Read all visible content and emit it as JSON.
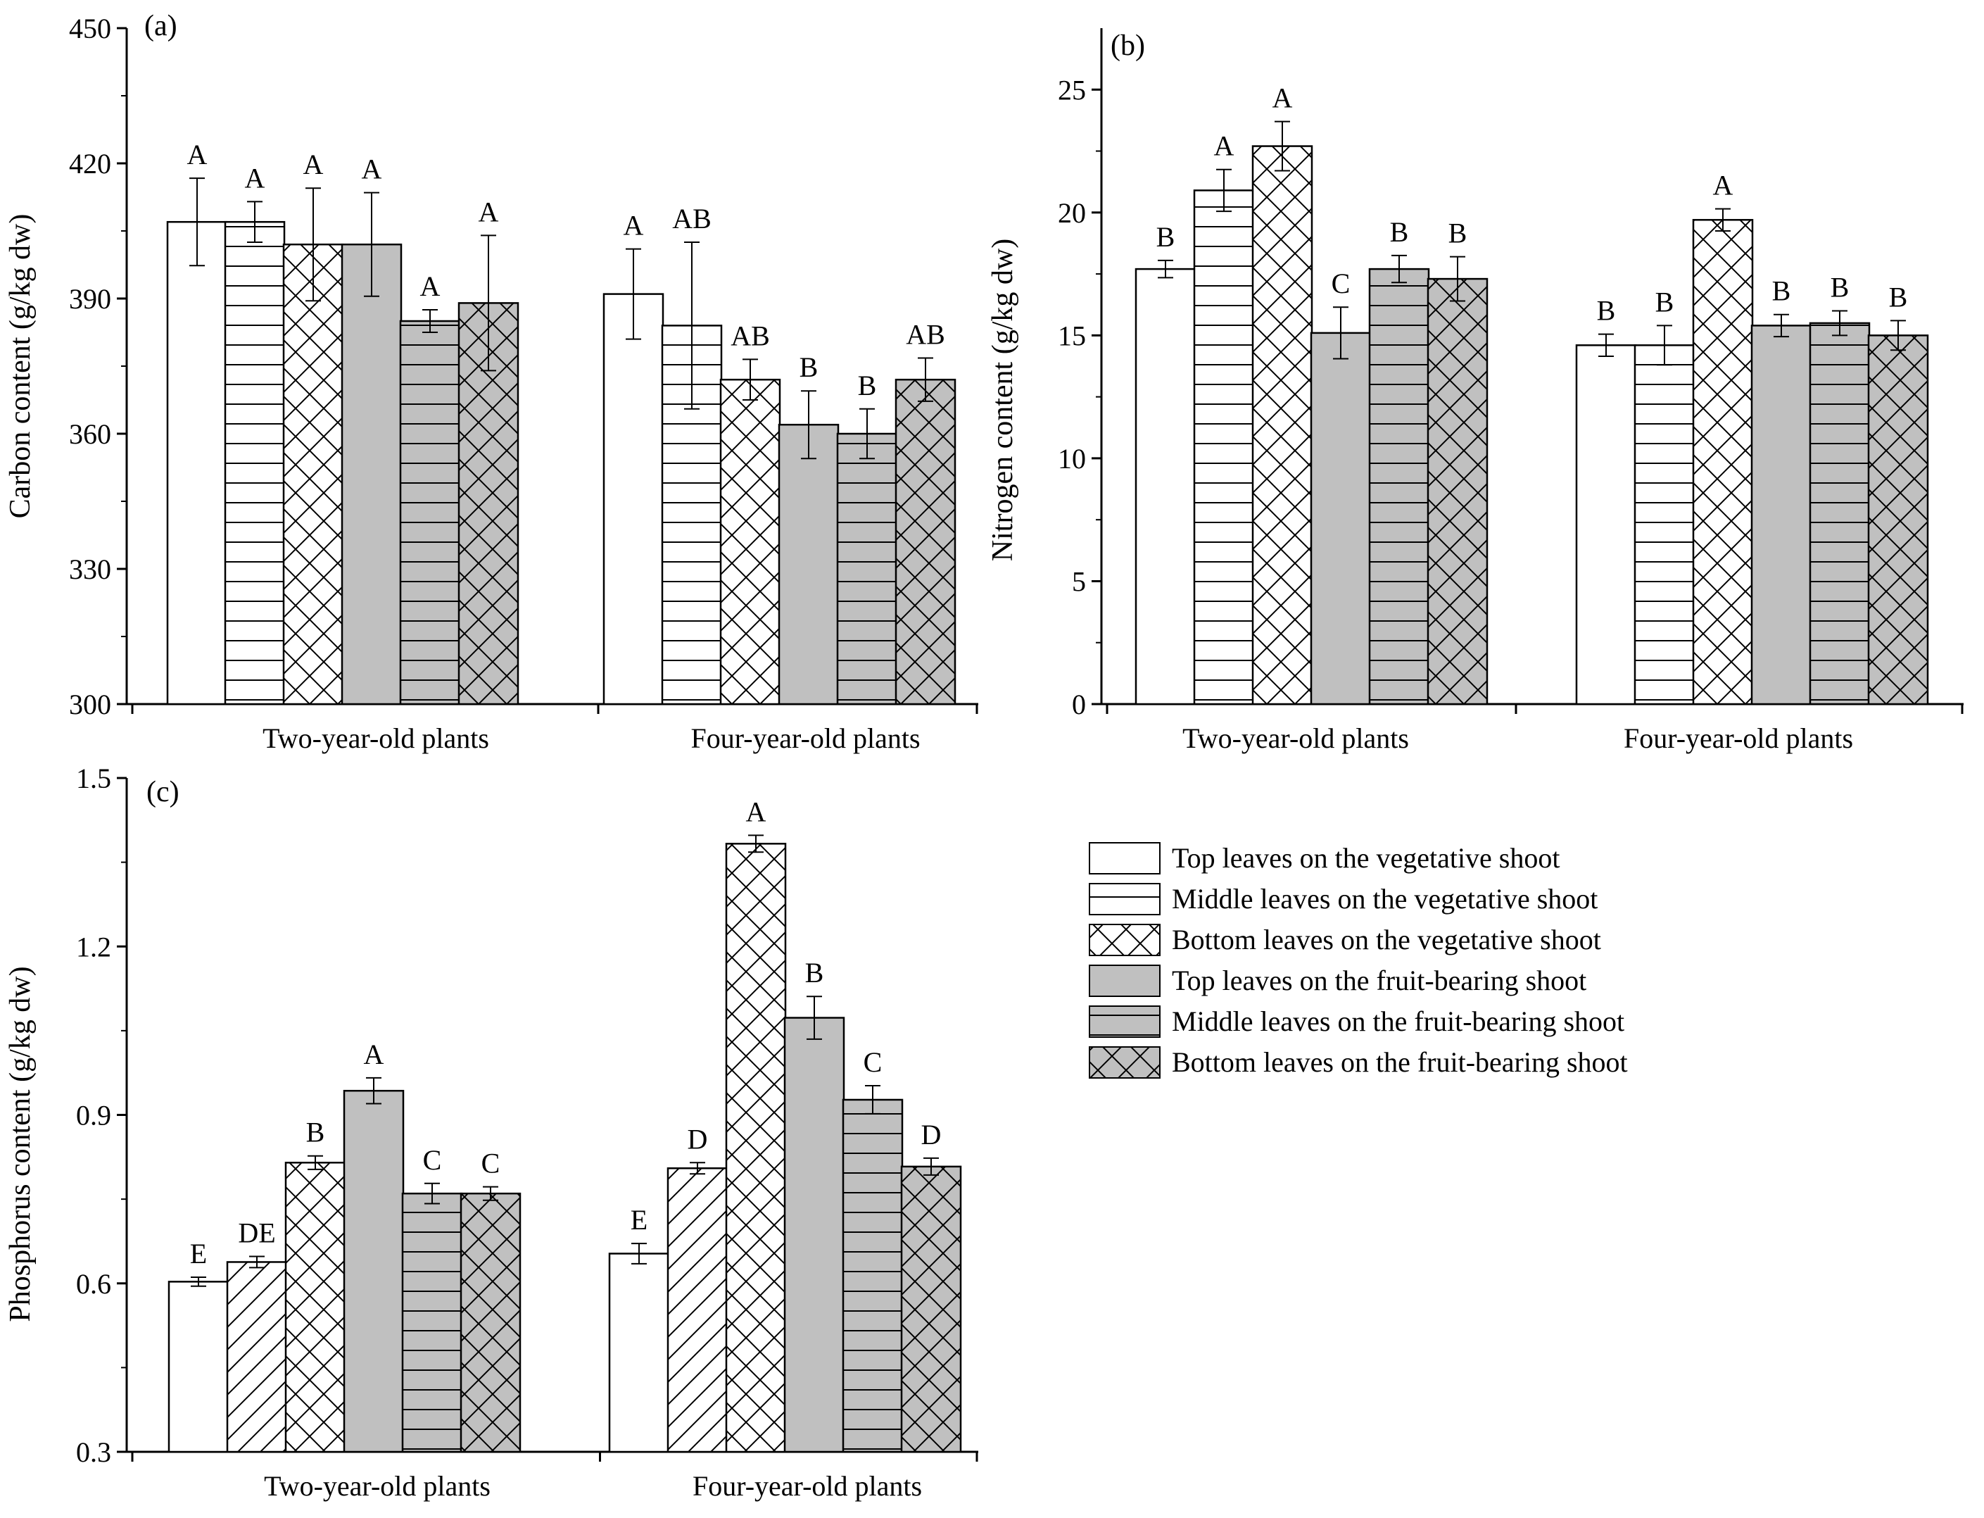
{
  "chart_data": [
    {
      "type": "bar",
      "panel_label": "(a)",
      "ylabel": "Carbon content (g/kg dw)",
      "ylim": [
        300,
        450
      ],
      "yticks": [
        300,
        330,
        360,
        390,
        420,
        450
      ],
      "categories": [
        "Two-year-old plants",
        "Four-year-old plants"
      ],
      "series": [
        {
          "name": "Top leaves on the vegetative shoot",
          "values": [
            407,
            391
          ],
          "errors": [
            9.7,
            10
          ],
          "letters": [
            "A",
            "A"
          ]
        },
        {
          "name": "Middle leaves on the vegetative shoot",
          "values": [
            407,
            384
          ],
          "errors": [
            4.5,
            18.5
          ],
          "letters": [
            "A",
            "AB"
          ]
        },
        {
          "name": "Bottom leaves on the vegetative shoot",
          "values": [
            402,
            372
          ],
          "errors": [
            12.5,
            4.5
          ],
          "letters": [
            "A",
            "AB"
          ]
        },
        {
          "name": "Top leaves on the fruit-bearing shoot",
          "values": [
            402,
            362
          ],
          "errors": [
            11.5,
            7.5
          ],
          "letters": [
            "A",
            "B"
          ]
        },
        {
          "name": "Middle leaves on the fruit-bearing shoot",
          "values": [
            385,
            360
          ],
          "errors": [
            2.5,
            5.5
          ],
          "letters": [
            "A",
            "B"
          ]
        },
        {
          "name": "Bottom leaves on the fruit-bearing shoot",
          "values": [
            389,
            372
          ],
          "errors": [
            15,
            4.8
          ],
          "letters": [
            "A",
            "AB"
          ]
        }
      ]
    },
    {
      "type": "bar",
      "panel_label": "(b)",
      "ylabel": "Nitrogen content (g/kg dw)",
      "ylim": [
        0,
        27.5
      ],
      "yticks": [
        0,
        5,
        10,
        15,
        20,
        25
      ],
      "categories": [
        "Two-year-old plants",
        "Four-year-old plants"
      ],
      "series": [
        {
          "name": "Top leaves on the vegetative shoot",
          "values": [
            17.7,
            14.6
          ],
          "errors": [
            0.35,
            0.45
          ],
          "letters": [
            "B",
            "B"
          ]
        },
        {
          "name": "Middle leaves on the vegetative shoot",
          "values": [
            20.9,
            14.6
          ],
          "errors": [
            0.85,
            0.8
          ],
          "letters": [
            "A",
            "B"
          ]
        },
        {
          "name": "Bottom leaves on the vegetative shoot",
          "values": [
            22.7,
            19.7
          ],
          "errors": [
            1.0,
            0.45
          ],
          "letters": [
            "A",
            "A"
          ]
        },
        {
          "name": "Top leaves on the fruit-bearing shoot",
          "values": [
            15.1,
            15.4
          ],
          "errors": [
            1.05,
            0.45
          ],
          "letters": [
            "C",
            "B"
          ]
        },
        {
          "name": "Middle leaves on the fruit-bearing shoot",
          "values": [
            17.7,
            15.5
          ],
          "errors": [
            0.55,
            0.5
          ],
          "letters": [
            "B",
            "B"
          ]
        },
        {
          "name": "Bottom leaves on the fruit-bearing shoot",
          "values": [
            17.3,
            15.0
          ],
          "errors": [
            0.9,
            0.6
          ],
          "letters": [
            "B",
            "B"
          ]
        }
      ]
    },
    {
      "type": "bar",
      "panel_label": "(c)",
      "ylabel": "Phosphorus content (g/kg dw)",
      "ylim": [
        0.3,
        1.5
      ],
      "yticks": [
        0.3,
        0.6,
        0.9,
        1.2,
        1.5
      ],
      "categories": [
        "Two-year-old plants",
        "Four-year-old plants"
      ],
      "series": [
        {
          "name": "Top leaves on the vegetative shoot",
          "values": [
            0.603,
            0.653
          ],
          "errors": [
            0.008,
            0.018
          ],
          "letters": [
            "E",
            "E"
          ]
        },
        {
          "name": "Middle leaves on the vegetative shoot",
          "values": [
            0.638,
            0.805
          ],
          "errors": [
            0.01,
            0.01
          ],
          "letters": [
            "DE",
            "D"
          ]
        },
        {
          "name": "Bottom leaves on the vegetative shoot",
          "values": [
            0.815,
            1.383
          ],
          "errors": [
            0.012,
            0.015
          ],
          "letters": [
            "B",
            "A"
          ]
        },
        {
          "name": "Top leaves on the fruit-bearing shoot",
          "values": [
            0.943,
            1.073
          ],
          "errors": [
            0.023,
            0.038
          ],
          "letters": [
            "A",
            "B"
          ]
        },
        {
          "name": "Middle leaves on the fruit-bearing shoot",
          "values": [
            0.76,
            0.927
          ],
          "errors": [
            0.018,
            0.025
          ],
          "letters": [
            "C",
            "C"
          ]
        },
        {
          "name": "Bottom leaves on the fruit-bearing shoot",
          "values": [
            0.76,
            0.808
          ],
          "errors": [
            0.012,
            0.015
          ],
          "letters": [
            "C",
            "D"
          ]
        }
      ]
    }
  ],
  "legend": [
    {
      "label": "Top leaves on the vegetative shoot",
      "pattern": "blank",
      "fill": "#ffffff"
    },
    {
      "label": "Middle leaves on the vegetative shoot",
      "pattern": "hlines",
      "fill": "#ffffff"
    },
    {
      "label": "Bottom leaves on the vegetative shoot",
      "pattern": "crosshatch",
      "fill": "#ffffff"
    },
    {
      "label": "Top leaves on the fruit-bearing shoot",
      "pattern": "blank",
      "fill": "#c0c0c0"
    },
    {
      "label": "Middle leaves on the fruit-bearing shoot",
      "pattern": "hlines",
      "fill": "#c0c0c0"
    },
    {
      "label": "Bottom leaves on the fruit-bearing shoot",
      "pattern": "crosshatch",
      "fill": "#c0c0c0"
    }
  ],
  "colors": {
    "gray_fill": "#c0c0c0",
    "white_fill": "#ffffff",
    "stroke": "#000000"
  }
}
